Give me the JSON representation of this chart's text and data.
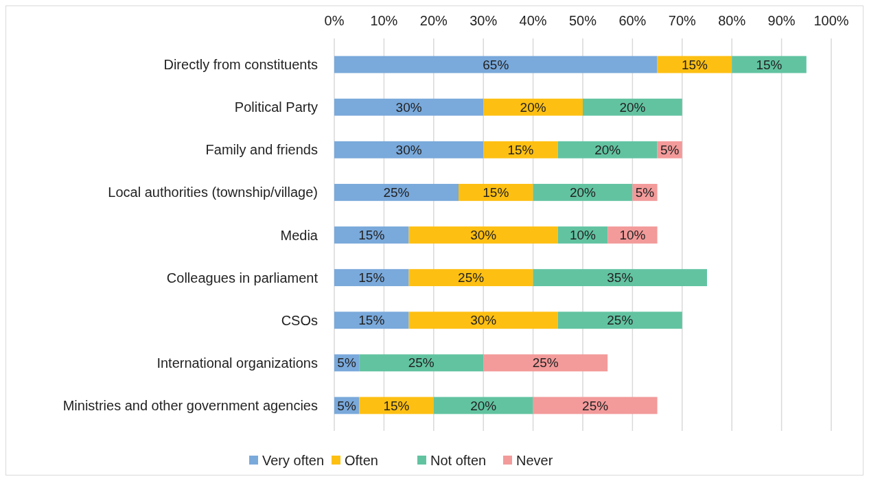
{
  "chart_data": {
    "type": "bar",
    "orientation": "horizontal",
    "stacked": true,
    "categories": [
      "Directly from constituents",
      "Political Party",
      "Family and friends",
      "Local authorities (township/village)",
      "Media",
      "Colleagues in parliament",
      "CSOs",
      "International organizations",
      "Ministries and other government agencies"
    ],
    "series": [
      {
        "name": "Very often",
        "color": "#7aa9db",
        "values": [
          65,
          30,
          30,
          25,
          15,
          15,
          15,
          5,
          5
        ],
        "value_labels": [
          "65%",
          "30%",
          "30%",
          "25%",
          "15%",
          "15%",
          "15%",
          "5%",
          "5%"
        ]
      },
      {
        "name": "Often",
        "color": "#fdbf12",
        "values": [
          15,
          20,
          15,
          15,
          30,
          25,
          30,
          null,
          15
        ],
        "value_labels": [
          "15%",
          "20%",
          "15%",
          "15%",
          "30%",
          "25%",
          "30%",
          null,
          "15%"
        ]
      },
      {
        "name": "Not often",
        "color": "#62c3a1",
        "values": [
          15,
          20,
          20,
          20,
          10,
          35,
          25,
          25,
          20
        ],
        "value_labels": [
          "15%",
          "20%",
          "20%",
          "20%",
          "10%",
          "35%",
          "25%",
          "25%",
          "20%"
        ]
      },
      {
        "name": "Never",
        "color": "#f39a9a",
        "values": [
          null,
          null,
          5,
          5,
          10,
          null,
          null,
          25,
          25
        ],
        "value_labels": [
          null,
          null,
          "5%",
          "5%",
          "10%",
          null,
          null,
          "25%",
          "25%"
        ]
      }
    ],
    "xlim": [
      0,
      100
    ],
    "xticks": [
      {
        "value": 0,
        "label": "0%"
      },
      {
        "value": 10,
        "label": "10%"
      },
      {
        "value": 20,
        "label": "20%"
      },
      {
        "value": 30,
        "label": "30%"
      },
      {
        "value": 40,
        "label": "40%"
      },
      {
        "value": 50,
        "label": "50%"
      },
      {
        "value": 60,
        "label": "60%"
      },
      {
        "value": 70,
        "label": "70%"
      },
      {
        "value": 80,
        "label": "80%"
      },
      {
        "value": 90,
        "label": "90%"
      },
      {
        "value": 100,
        "label": "100%"
      }
    ],
    "grid": "x",
    "legend": "bottom"
  }
}
